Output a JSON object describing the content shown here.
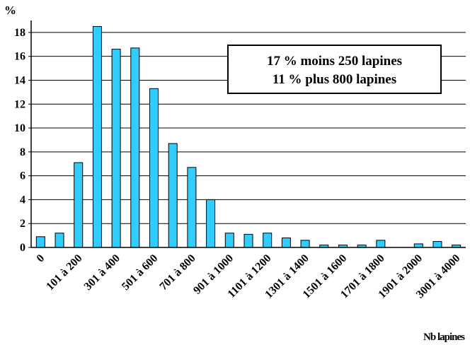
{
  "chart_data": {
    "type": "bar",
    "ylabel": "%",
    "xlabel": "Nb lapines",
    "ylim": [
      0,
      19
    ],
    "yticks": [
      0,
      2,
      4,
      6,
      8,
      10,
      12,
      14,
      16,
      18
    ],
    "grid": "horizontal",
    "bar_color": "#33CCFF",
    "categories": [
      "0",
      "",
      "101 à 200",
      "",
      "301 à 400",
      "",
      "501 à 600",
      "",
      "701 à 800",
      "",
      "901 à 1000",
      "",
      "1101 à 1200",
      "",
      "1301 à 1400",
      "",
      "1501 à 1600",
      "",
      "1701 à 1800",
      "",
      "1901 à 2000",
      "",
      "3001 à 4000"
    ],
    "values": [
      0.9,
      1.2,
      7.1,
      18.5,
      16.6,
      16.7,
      13.3,
      8.7,
      6.7,
      4.0,
      1.2,
      1.1,
      1.2,
      0.8,
      0.6,
      0.2,
      0.2,
      0.2,
      0.6,
      0,
      0.3,
      0.5,
      0.2
    ],
    "annotations": [
      "17 % moins 250 lapines",
      "11 % plus 800 lapines"
    ]
  }
}
